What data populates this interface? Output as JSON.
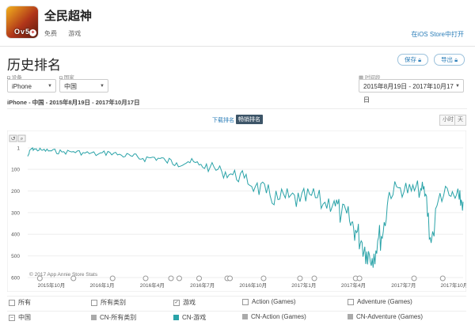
{
  "app": {
    "icon_text": "Ov5",
    "name": "全民超神",
    "price": "免费",
    "category": "游戏",
    "ios_link": "在iOS Store中打开"
  },
  "page": {
    "title": "历史排名",
    "save_label": "保存",
    "export_label": "导出"
  },
  "filters": {
    "device_label": "设备",
    "device_value": "iPhone",
    "country_label": "国家",
    "country_value": "中国",
    "range_label": "时间段",
    "range_value": "2015年8月19日 - 2017年10月17日"
  },
  "subtitle": "iPhone - 中国 - 2015年8月19日 - 2017年10月17日",
  "toggles": {
    "download_rank": "下载排名",
    "grossing_rank": "畅销排名",
    "hour": "小时",
    "day": "天"
  },
  "chart_data": {
    "type": "line",
    "title": "",
    "y_reversed": true,
    "ylim": [
      600,
      1
    ],
    "yticks": [
      1,
      100,
      200,
      300,
      400,
      500,
      600
    ],
    "xticks": [
      "2015年10月",
      "2016年1月",
      "2016年4月",
      "2016年7月",
      "2016年10月",
      "2017年1月",
      "2017年4月",
      "2017年7月",
      "2017年10月"
    ],
    "watermark": "© 2017 App Annie Store Stats",
    "grid": true,
    "series": [
      {
        "name": "CN-游戏",
        "color": "#2aa3a8",
        "x": [
          "2015-08-19",
          "2015-08-26",
          "2015-09-01",
          "2015-09-15",
          "2015-10-01",
          "2015-10-20",
          "2015-11-10",
          "2015-12-01",
          "2015-12-25",
          "2016-01-15",
          "2016-02-05",
          "2016-02-25",
          "2016-03-15",
          "2016-04-05",
          "2016-04-25",
          "2016-05-15",
          "2016-06-05",
          "2016-06-25",
          "2016-07-15",
          "2016-08-05",
          "2016-08-25",
          "2016-09-15",
          "2016-10-05",
          "2016-10-25",
          "2016-11-15",
          "2016-12-05",
          "2016-12-25",
          "2017-01-15",
          "2017-02-05",
          "2017-02-25",
          "2017-03-10",
          "2017-03-25",
          "2017-04-05",
          "2017-04-15",
          "2017-04-25",
          "2017-05-05",
          "2017-05-15",
          "2017-05-25",
          "2017-06-05",
          "2017-06-25",
          "2017-07-15",
          "2017-08-01",
          "2017-08-10",
          "2017-08-20",
          "2017-09-05",
          "2017-09-25",
          "2017-10-10",
          "2017-10-17"
        ],
        "values": [
          40,
          3,
          8,
          12,
          15,
          20,
          18,
          25,
          30,
          22,
          35,
          40,
          50,
          45,
          60,
          70,
          65,
          80,
          90,
          110,
          125,
          140,
          180,
          210,
          240,
          230,
          250,
          220,
          260,
          245,
          310,
          340,
          380,
          430,
          480,
          510,
          430,
          390,
          205,
          185,
          200,
          190,
          215,
          440,
          210,
          225,
          240,
          250
        ]
      }
    ]
  },
  "legend": {
    "row1": [
      "所有",
      "所有类别",
      "游戏",
      "Action (Games)",
      "Adventure (Games)"
    ],
    "row2_country": "中国",
    "row2": [
      "CN-所有类别",
      "CN-游戏",
      "CN-Action (Games)",
      "CN-Adventure (Games)"
    ],
    "row2_colors": [
      "#aaaaaa",
      "#2aa3a8",
      "#aaaaaa",
      "#aaaaaa"
    ]
  }
}
